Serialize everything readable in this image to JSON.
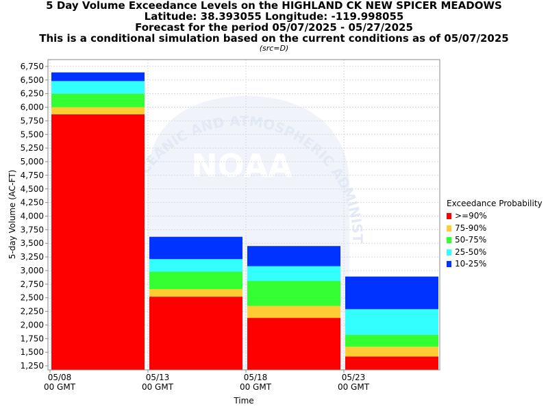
{
  "title": {
    "line1": "5 Day Volume Exceedance Levels on the HIGHLAND CK NEW SPICER MEADOWS",
    "line2": "Latitude: 38.393055 Longitude: -119.998055",
    "line3": "Forecast for the period 05/07/2025 - 05/27/2025",
    "line4": "This is a conditional simulation based on the current conditions as of 05/07/2025",
    "src": "(src=D)"
  },
  "watermark": {
    "text_arc": "OCEANIC AND ATMOSPHERIC ADMINISTRATION",
    "logo_text": "NOAA"
  },
  "chart_data": {
    "type": "bar",
    "stacked": true,
    "xlabel": "Time",
    "ylabel": "5-day Volume (AC-FT)",
    "ylim": [
      1175,
      6875
    ],
    "yticks": [
      1250,
      1500,
      1750,
      2000,
      2250,
      2500,
      2750,
      3000,
      3250,
      3500,
      3750,
      4000,
      4250,
      4500,
      4750,
      5000,
      5250,
      5500,
      5750,
      6000,
      6250,
      6500,
      6750
    ],
    "xticks": [
      {
        "date": "05/08",
        "sub": "00 GMT"
      },
      {
        "date": "05/13",
        "sub": "00 GMT"
      },
      {
        "date": "05/18",
        "sub": "00 GMT"
      },
      {
        "date": "05/23",
        "sub": "00 GMT"
      }
    ],
    "grid": true,
    "legend_title": "Exceedance Probability",
    "legend_position": "right",
    "series": [
      {
        "name": ">=90%",
        "color": "#ff0000"
      },
      {
        "name": "75-90%",
        "color": "#ffcc33"
      },
      {
        "name": "50-75%",
        "color": "#33ff33"
      },
      {
        "name": "25-50%",
        "color": "#33ffff"
      },
      {
        "name": "10-25%",
        "color": "#0033ff"
      }
    ],
    "bars": [
      {
        "period_start": "05/08",
        "period_end": "05/13",
        "levels": [
          5870,
          6000,
          6250,
          6480,
          6640
        ]
      },
      {
        "period_start": "05/13",
        "period_end": "05/18",
        "levels": [
          2520,
          2660,
          2980,
          3210,
          3620
        ]
      },
      {
        "period_start": "05/18",
        "period_end": "05/23",
        "levels": [
          2130,
          2350,
          2810,
          3080,
          3450
        ]
      },
      {
        "period_start": "05/23",
        "period_end": "05/28",
        "levels": [
          1420,
          1600,
          1820,
          2290,
          2890
        ]
      }
    ]
  }
}
